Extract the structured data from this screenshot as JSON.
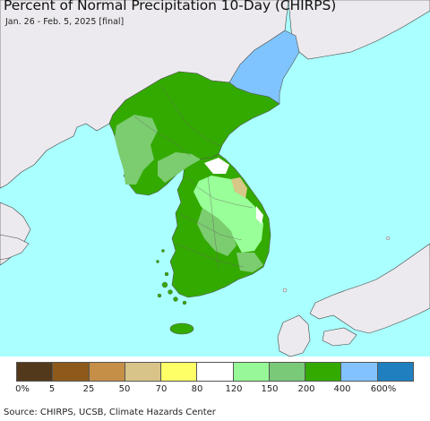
{
  "title": "Percent of Normal Precipitation 10-Day (CHIRPS)",
  "subtitle": "Jan. 26 - Feb. 5, 2025 [final]",
  "source": "Source: CHIRPS, UCSB, Climate Hazards Center",
  "colors": {
    "ocean": "#aaffff",
    "land_outside": "#eceaee",
    "green_dark": "#33aa00",
    "green_mid": "#7ccc70",
    "green_light": "#99ff99",
    "blue_light": "#80c4ff",
    "tan": "#d8c888",
    "white": "#ffffff"
  },
  "legend": {
    "colors": [
      "#53391b",
      "#8d5a1c",
      "#c58f48",
      "#d8c389",
      "#fefe66",
      "#ffffff",
      "#96f896",
      "#79c979",
      "#33aa00",
      "#82c3ff",
      "#1f7fbf"
    ],
    "labels": [
      "0%",
      "5",
      "25",
      "50",
      "70",
      "80",
      "120",
      "150",
      "200",
      "400",
      "600%"
    ]
  }
}
